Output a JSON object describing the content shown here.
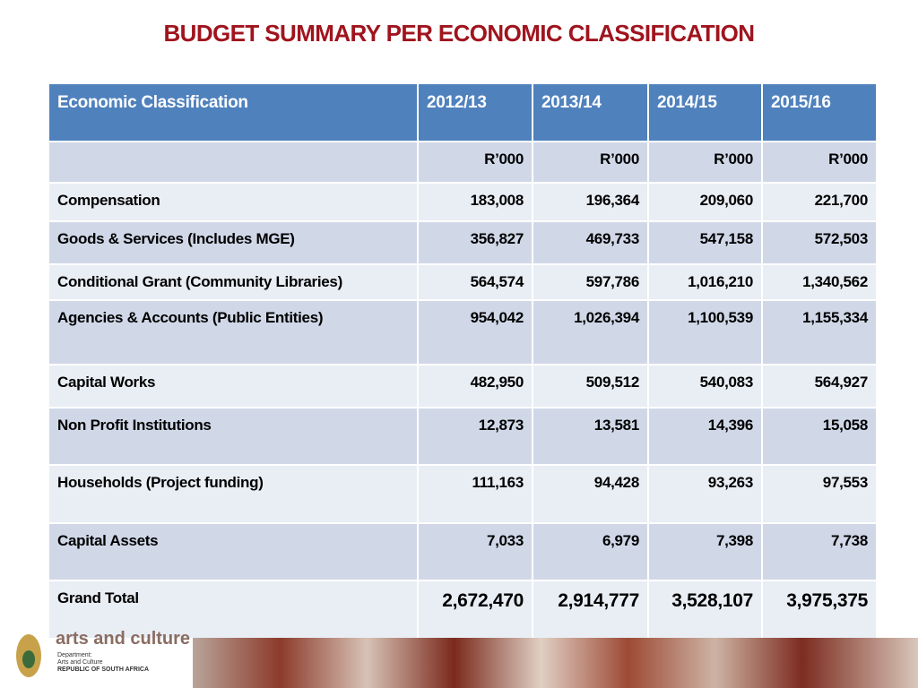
{
  "title": "BUDGET SUMMARY PER ECONOMIC CLASSIFICATION",
  "table": {
    "header": [
      "Economic Classification",
      "2012/13",
      "2013/14",
      "2014/15",
      "2015/16"
    ],
    "units": [
      "R’000",
      "R’000",
      "R’000",
      "R’000"
    ],
    "rows": [
      {
        "label": "Compensation",
        "values": [
          "183,008",
          "196,364",
          "209,060",
          "221,700"
        ]
      },
      {
        "label": "Goods & Services (Includes MGE)",
        "values": [
          "356,827",
          "469,733",
          "547,158",
          "572,503"
        ]
      },
      {
        "label": "Conditional Grant (Community Libraries)",
        "values": [
          "564,574",
          "597,786",
          "1,016,210",
          "1,340,562"
        ]
      },
      {
        "label": "Agencies & Accounts (Public Entities)",
        "values": [
          "954,042",
          "1,026,394",
          "1,100,539",
          "1,155,334"
        ]
      },
      {
        "label": "Capital Works",
        "values": [
          "482,950",
          "509,512",
          "540,083",
          "564,927"
        ]
      },
      {
        "label": "Non Profit Institutions",
        "values": [
          "12,873",
          "13,581",
          "14,396",
          "15,058"
        ]
      },
      {
        "label": "Households (Project funding)",
        "values": [
          "111,163",
          "94,428",
          "93,263",
          "97,553"
        ]
      },
      {
        "label": "Capital Assets",
        "values": [
          "7,033",
          "6,979",
          "7,398",
          "7,738"
        ]
      },
      {
        "label": "Grand Total",
        "values": [
          "2,672,470",
          "2,914,777",
          "3,528,107",
          "3,975,375"
        ]
      }
    ]
  },
  "footer": {
    "brand": "arts and culture",
    "dept": "Department:",
    "dept_name": "Arts and Culture",
    "country": "REPUBLIC OF SOUTH AFRICA"
  }
}
